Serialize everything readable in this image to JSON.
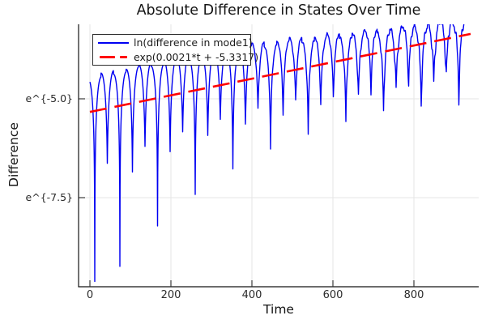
{
  "chart_data": {
    "type": "line",
    "title": "Absolute Difference in States Over Time",
    "xlabel": "Time",
    "ylabel": "Difference",
    "grid": true,
    "legend_position": "top-left",
    "x_axis": {
      "lim": [
        -28,
        960
      ],
      "ticks": [
        {
          "value": 0,
          "label": "0"
        },
        {
          "value": 200,
          "label": "200"
        },
        {
          "value": 400,
          "label": "400"
        },
        {
          "value": 600,
          "label": "600"
        },
        {
          "value": 800,
          "label": "800"
        }
      ]
    },
    "y_axis": {
      "scale": "log-e",
      "lim_ln": [
        -9.754,
        -3.115
      ],
      "ticks": [
        {
          "ln": -5.0,
          "label": "e^{-5.0}"
        },
        {
          "ln": -7.5,
          "label": "e^{-7.5}"
        }
      ]
    },
    "series": [
      {
        "name": "ln(difference in mode1)",
        "color": "#0000f2",
        "style": "solid",
        "width": 1.4,
        "model": {
          "description": "ln|d(t)| = fit(t) + top_offset(t) + ln(|sin(pi*(t-cusp_phase)/cusp_period)| + exp(-gap)) + jag; oscillation with cusped minima, deep minima on a slow beat early, minima rising toward the growing envelope",
          "t_start": 0,
          "t_end": 928,
          "sample_step": 0.5,
          "fit_slope": 0.0021,
          "fit_intercept": -5.3317,
          "top_offset_const": 0.1,
          "top_offset_amp": 0.72,
          "top_offset_tau": 700,
          "cusp_phase": 12,
          "cusp_period": 31,
          "beat_phase": 80,
          "beat_period": 93,
          "gap_const": 0.95,
          "gap_amp": 1.35,
          "gap_tau": 450,
          "deep_const": 0.45,
          "deep_amp": 3.3,
          "deep_tau": 300,
          "jag_amp": 0.22,
          "jag_pow": 1.8,
          "jag_f1": 0.55,
          "jag_f2": 1.3,
          "floor_ln": -9.62
        }
      },
      {
        "name": "exp(0.0021*t + -5.3317)",
        "color": "#ff0000",
        "style": "dashed",
        "width": 2.6,
        "dash": "21 10",
        "model": {
          "type": "exponential_fit",
          "slope": 0.0021,
          "intercept": -5.3317,
          "t_start": 0,
          "t_end": 940
        }
      }
    ]
  }
}
